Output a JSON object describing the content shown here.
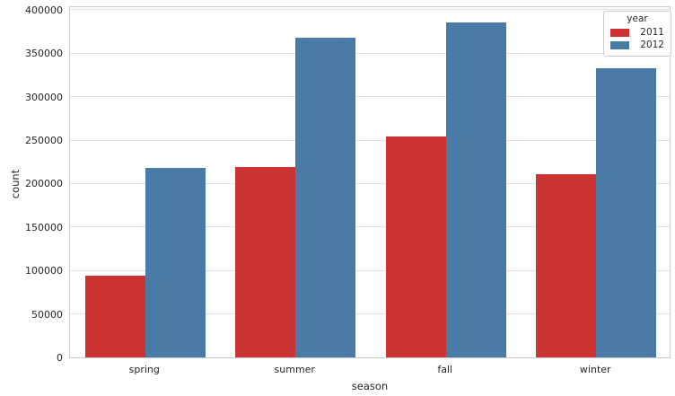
{
  "chart_data": {
    "type": "bar",
    "title": "",
    "xlabel": "season",
    "ylabel": "count",
    "categories": [
      "spring",
      "summer",
      "fall",
      "winter"
    ],
    "series": [
      {
        "name": "2011",
        "color": "#cc3333",
        "values": [
          94000,
          219000,
          254000,
          211000
        ]
      },
      {
        "name": "2012",
        "color": "#4a7ba6",
        "values": [
          218000,
          368000,
          385000,
          333000
        ]
      }
    ],
    "ylim": [
      0,
      405000
    ],
    "yticks": [
      0,
      50000,
      100000,
      150000,
      200000,
      250000,
      300000,
      350000,
      400000
    ],
    "grid": true,
    "grid_axis": "y",
    "grid_color": "#e0e0e0",
    "spine_color": "#cccccc",
    "text_color": "#262626",
    "legend_title": "year",
    "legend_position": "upper right",
    "bar_group_width": 0.8
  }
}
